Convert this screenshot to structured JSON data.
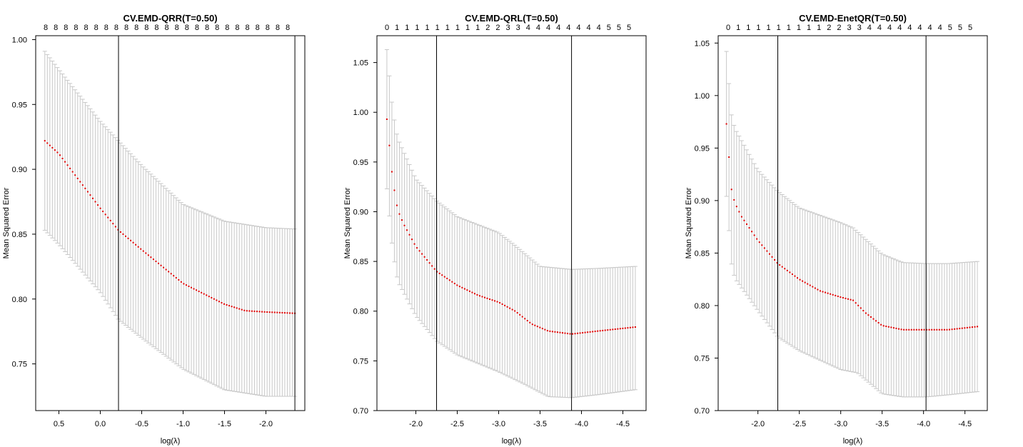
{
  "chart_data": [
    {
      "type": "scatter",
      "title": "CV.EMD-QRR(T=0.50)",
      "xlabel": "log(λ)",
      "ylabel": "Mean Squared Error",
      "xlim": [
        0.78,
        -2.47
      ],
      "ylim": [
        0.714,
        1.003
      ],
      "xticks": [
        "0.5",
        "0.0",
        "-0.5",
        "-1.0",
        "-1.5",
        "-2.0"
      ],
      "xtick_values": [
        0.5,
        0.0,
        -0.5,
        -1.0,
        -1.5,
        -2.0
      ],
      "yticks": [
        "0.75",
        "0.80",
        "0.85",
        "0.90",
        "0.95",
        "1.00"
      ],
      "ytick_values": [
        0.75,
        0.8,
        0.85,
        0.9,
        0.95,
        1.0
      ],
      "top_axis_labels": [
        "8",
        "8",
        "8",
        "8",
        "8",
        "8",
        "8",
        "8",
        "8",
        "8",
        "8",
        "8",
        "8",
        "8",
        "8",
        "8",
        "8",
        "8",
        "8",
        "8",
        "8",
        "8",
        "8",
        "8",
        "8"
      ],
      "vlines": [
        -0.22,
        -2.35
      ],
      "series": [
        {
          "name": "cv mean",
          "x_start": 0.67,
          "x_end": -2.35,
          "key_points": [
            [
              0.67,
              0.922
            ],
            [
              0.5,
              0.912
            ],
            [
              0.0,
              0.87
            ],
            [
              -0.22,
              0.853
            ],
            [
              -0.5,
              0.838
            ],
            [
              -1.0,
              0.812
            ],
            [
              -1.5,
              0.796
            ],
            [
              -1.75,
              0.791
            ],
            [
              -2.0,
              0.79
            ],
            [
              -2.35,
              0.789
            ]
          ]
        },
        {
          "name": "upper",
          "key_points": [
            [
              0.67,
              0.991
            ],
            [
              0.5,
              0.977
            ],
            [
              0.0,
              0.937
            ],
            [
              -0.22,
              0.922
            ],
            [
              -0.5,
              0.903
            ],
            [
              -1.0,
              0.873
            ],
            [
              -1.5,
              0.86
            ],
            [
              -2.0,
              0.855
            ],
            [
              -2.35,
              0.854
            ]
          ]
        },
        {
          "name": "lower",
          "key_points": [
            [
              0.67,
              0.853
            ],
            [
              0.5,
              0.842
            ],
            [
              0.0,
              0.805
            ],
            [
              -0.22,
              0.784
            ],
            [
              -0.5,
              0.77
            ],
            [
              -1.0,
              0.746
            ],
            [
              -1.5,
              0.73
            ],
            [
              -2.0,
              0.725
            ],
            [
              -2.35,
              0.725
            ]
          ]
        }
      ]
    },
    {
      "type": "scatter",
      "title": "CV.EMD-QRL(T=0.50)",
      "xlabel": "log(λ)",
      "ylabel": "Mean Squared Error",
      "xlim": [
        -1.53,
        -4.78
      ],
      "ylim": [
        0.7,
        1.077
      ],
      "xticks": [
        "-2.0",
        "-2.5",
        "-3.0",
        "-3.5",
        "-4.0",
        "-4.5"
      ],
      "xtick_values": [
        -2.0,
        -2.5,
        -3.0,
        -3.5,
        -4.0,
        -4.5
      ],
      "yticks": [
        "0.70",
        "0.75",
        "0.80",
        "0.85",
        "0.90",
        "0.95",
        "1.00",
        "1.05"
      ],
      "ytick_values": [
        0.7,
        0.75,
        0.8,
        0.85,
        0.9,
        0.95,
        1.0,
        1.05
      ],
      "top_axis_labels": [
        "0",
        "1",
        "1",
        "1",
        "1",
        "1",
        "1",
        "1",
        "1",
        "1",
        "2",
        "2",
        "3",
        "3",
        "4",
        "4",
        "4",
        "4",
        "4",
        "4",
        "4",
        "4",
        "5",
        "5",
        "5"
      ],
      "vlines": [
        -2.25,
        -3.88
      ],
      "series": [
        {
          "name": "cv mean",
          "x_start": -1.65,
          "x_end": -4.65,
          "key_points": [
            [
              -1.65,
              0.993
            ],
            [
              -1.72,
              0.932
            ],
            [
              -1.78,
              0.902
            ],
            [
              -1.85,
              0.888
            ],
            [
              -2.0,
              0.865
            ],
            [
              -2.25,
              0.84
            ],
            [
              -2.5,
              0.826
            ],
            [
              -2.75,
              0.816
            ],
            [
              -3.0,
              0.809
            ],
            [
              -3.2,
              0.8
            ],
            [
              -3.4,
              0.787
            ],
            [
              -3.6,
              0.78
            ],
            [
              -3.88,
              0.777
            ],
            [
              -4.2,
              0.78
            ],
            [
              -4.65,
              0.784
            ]
          ]
        },
        {
          "name": "upper",
          "key_points": [
            [
              -1.65,
              1.063
            ],
            [
              -1.72,
              1.002
            ],
            [
              -1.78,
              0.974
            ],
            [
              -2.0,
              0.933
            ],
            [
              -2.25,
              0.911
            ],
            [
              -2.5,
              0.895
            ],
            [
              -3.0,
              0.879
            ],
            [
              -3.2,
              0.866
            ],
            [
              -3.5,
              0.845
            ],
            [
              -3.88,
              0.842
            ],
            [
              -4.2,
              0.843
            ],
            [
              -4.65,
              0.845
            ]
          ]
        },
        {
          "name": "lower",
          "key_points": [
            [
              -1.65,
              0.923
            ],
            [
              -1.72,
              0.86
            ],
            [
              -1.78,
              0.83
            ],
            [
              -2.0,
              0.795
            ],
            [
              -2.25,
              0.77
            ],
            [
              -2.5,
              0.756
            ],
            [
              -3.0,
              0.739
            ],
            [
              -3.3,
              0.727
            ],
            [
              -3.6,
              0.714
            ],
            [
              -3.88,
              0.713
            ],
            [
              -4.2,
              0.716
            ],
            [
              -4.65,
              0.721
            ]
          ]
        }
      ]
    },
    {
      "type": "scatter",
      "title": "CV.EMD-EnetQR(T=0.50)",
      "xlabel": "log(λ)",
      "ylabel": "Mean Squared Error",
      "xlim": [
        -1.52,
        -4.77
      ],
      "ylim": [
        0.7,
        1.057
      ],
      "xticks": [
        "-2.0",
        "-2.5",
        "-3.0",
        "-3.5",
        "-4.0",
        "-4.5"
      ],
      "xtick_values": [
        -2.0,
        -2.5,
        -3.0,
        -3.5,
        -4.0,
        -4.5
      ],
      "yticks": [
        "0.70",
        "0.75",
        "0.80",
        "0.85",
        "0.90",
        "0.95",
        "1.00",
        "1.05"
      ],
      "ytick_values": [
        0.7,
        0.75,
        0.8,
        0.85,
        0.9,
        0.95,
        1.0,
        1.05
      ],
      "top_axis_labels": [
        "0",
        "1",
        "1",
        "1",
        "1",
        "1",
        "1",
        "1",
        "1",
        "1",
        "2",
        "2",
        "3",
        "3",
        "4",
        "4",
        "4",
        "4",
        "4",
        "4",
        "4",
        "4",
        "5",
        "5",
        "5"
      ],
      "vlines": [
        -2.24,
        -4.03
      ],
      "series": [
        {
          "name": "cv mean",
          "x_start": -1.62,
          "x_end": -4.65,
          "key_points": [
            [
              -1.62,
              0.973
            ],
            [
              -1.68,
              0.911
            ],
            [
              -1.72,
              0.898
            ],
            [
              -1.8,
              0.885
            ],
            [
              -2.0,
              0.862
            ],
            [
              -2.24,
              0.84
            ],
            [
              -2.5,
              0.825
            ],
            [
              -2.75,
              0.814
            ],
            [
              -3.0,
              0.808
            ],
            [
              -3.15,
              0.805
            ],
            [
              -3.3,
              0.793
            ],
            [
              -3.5,
              0.781
            ],
            [
              -3.75,
              0.777
            ],
            [
              -4.03,
              0.777
            ],
            [
              -4.3,
              0.777
            ],
            [
              -4.65,
              0.78
            ]
          ]
        },
        {
          "name": "upper",
          "key_points": [
            [
              -1.62,
              1.042
            ],
            [
              -1.68,
              0.982
            ],
            [
              -1.72,
              0.969
            ],
            [
              -2.0,
              0.929
            ],
            [
              -2.24,
              0.909
            ],
            [
              -2.5,
              0.893
            ],
            [
              -3.0,
              0.879
            ],
            [
              -3.15,
              0.874
            ],
            [
              -3.5,
              0.849
            ],
            [
              -3.75,
              0.841
            ],
            [
              -4.03,
              0.84
            ],
            [
              -4.3,
              0.84
            ],
            [
              -4.65,
              0.842
            ]
          ]
        },
        {
          "name": "lower",
          "key_points": [
            [
              -1.62,
              0.904
            ],
            [
              -1.68,
              0.84
            ],
            [
              -1.72,
              0.826
            ],
            [
              -2.0,
              0.795
            ],
            [
              -2.24,
              0.77
            ],
            [
              -2.5,
              0.757
            ],
            [
              -3.0,
              0.739
            ],
            [
              -3.2,
              0.736
            ],
            [
              -3.5,
              0.716
            ],
            [
              -3.75,
              0.713
            ],
            [
              -4.03,
              0.713
            ],
            [
              -4.3,
              0.715
            ],
            [
              -4.65,
              0.718
            ]
          ]
        }
      ]
    }
  ],
  "style": {
    "point_color": "#e00000",
    "errorbar_color": "#c8c8c8",
    "axis_color": "#000000",
    "n_points": 100
  }
}
